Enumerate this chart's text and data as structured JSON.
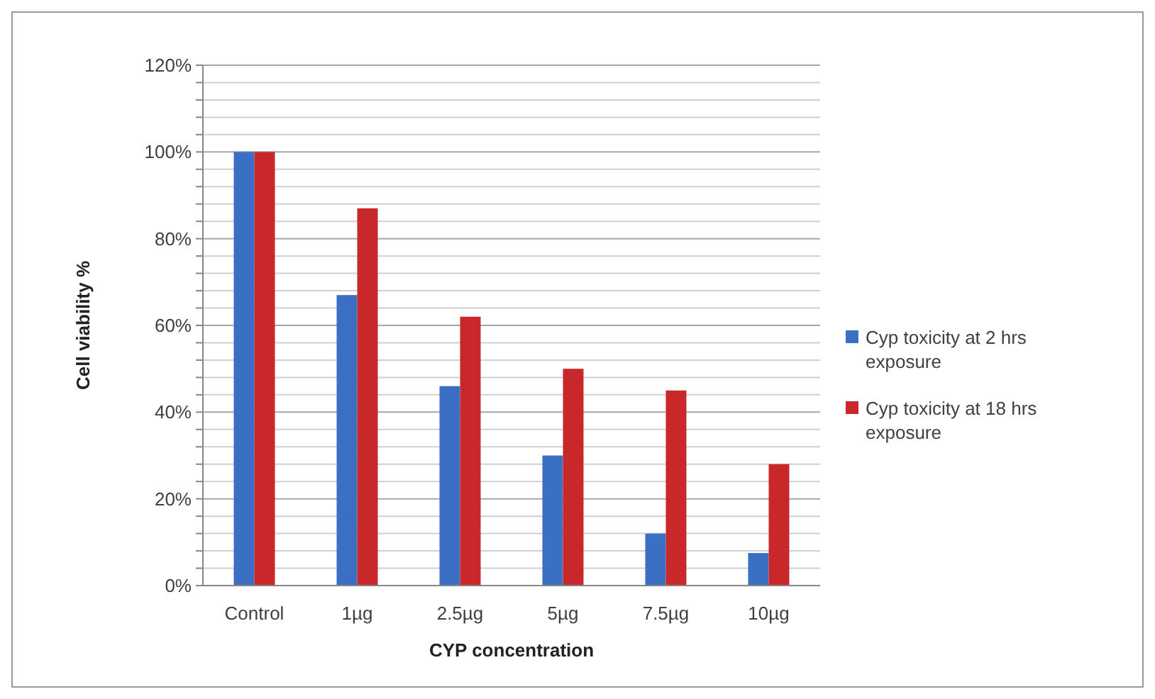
{
  "chart_data": {
    "type": "bar",
    "xlabel": "CYP concentration",
    "ylabel": "Cell viability %",
    "categories": [
      "Control",
      "1µg",
      "2.5µg",
      "5µg",
      "7.5µg",
      "10µg"
    ],
    "series": [
      {
        "name": "Cyp toxicity at 2 hrs exposure",
        "color": "#3a6fc4",
        "values": [
          100,
          67,
          46,
          30,
          12,
          7.5
        ]
      },
      {
        "name": "Cyp toxicity at 18 hrs exposure",
        "color": "#c8282a",
        "values": [
          100,
          87,
          62,
          50,
          45,
          28
        ]
      }
    ],
    "ylim": [
      0,
      120
    ],
    "yticks": [
      {
        "value": 0,
        "label": "0%"
      },
      {
        "value": 4,
        "label": null
      },
      {
        "value": 8,
        "label": null
      },
      {
        "value": 12,
        "label": null
      },
      {
        "value": 16,
        "label": null
      },
      {
        "value": 20,
        "label": "20%"
      },
      {
        "value": 24,
        "label": null
      },
      {
        "value": 28,
        "label": null
      },
      {
        "value": 32,
        "label": null
      },
      {
        "value": 36,
        "label": null
      },
      {
        "value": 40,
        "label": "40%"
      },
      {
        "value": 44,
        "label": null
      },
      {
        "value": 48,
        "label": null
      },
      {
        "value": 52,
        "label": null
      },
      {
        "value": 56,
        "label": null
      },
      {
        "value": 60,
        "label": "60%"
      },
      {
        "value": 64,
        "label": null
      },
      {
        "value": 68,
        "label": null
      },
      {
        "value": 72,
        "label": null
      },
      {
        "value": 76,
        "label": null
      },
      {
        "value": 80,
        "label": "80%"
      },
      {
        "value": 84,
        "label": null
      },
      {
        "value": 88,
        "label": null
      },
      {
        "value": 92,
        "label": null
      },
      {
        "value": 96,
        "label": null
      },
      {
        "value": 100,
        "label": "100%"
      },
      {
        "value": 104,
        "label": null
      },
      {
        "value": 108,
        "label": null
      },
      {
        "value": 112,
        "label": null
      },
      {
        "value": 116,
        "label": null
      },
      {
        "value": 120,
        "label": "120%"
      }
    ],
    "grid": "y",
    "legend": "right"
  }
}
